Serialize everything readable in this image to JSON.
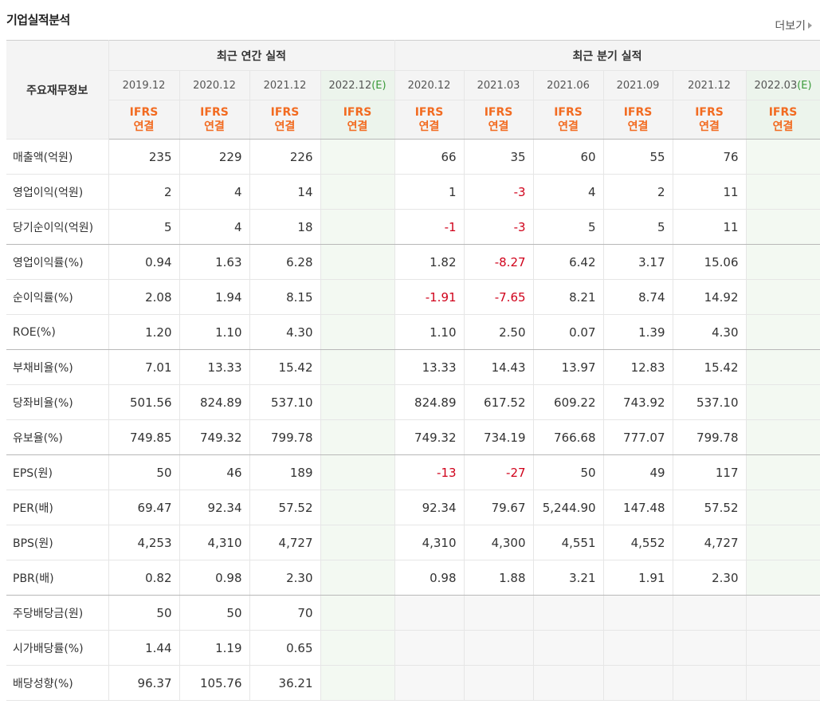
{
  "title": "기업실적분석",
  "more_label": "더보기",
  "header": {
    "label_col": "주요재무정보",
    "annual_group": "최근 연간 실적",
    "quarter_group": "최근 분기 실적",
    "annual_periods": [
      "2019.12",
      "2020.12",
      "2021.12",
      "2022.12"
    ],
    "annual_est": "(E)",
    "quarter_periods": [
      "2020.12",
      "2021.03",
      "2021.06",
      "2021.09",
      "2021.12",
      "2022.03"
    ],
    "quarter_est": "(E)",
    "basis_line1": "IFRS",
    "basis_line2": "연결"
  },
  "rows": [
    {
      "label": "매출액(억원)",
      "annual": [
        "235",
        "229",
        "226",
        ""
      ],
      "quarter": [
        "66",
        "35",
        "60",
        "55",
        "76",
        ""
      ]
    },
    {
      "label": "영업이익(억원)",
      "annual": [
        "2",
        "4",
        "14",
        ""
      ],
      "quarter": [
        "1",
        "-3",
        "4",
        "2",
        "11",
        ""
      ]
    },
    {
      "label": "당기순이익(억원)",
      "annual": [
        "5",
        "4",
        "18",
        ""
      ],
      "quarter": [
        "-1",
        "-3",
        "5",
        "5",
        "11",
        ""
      ]
    },
    {
      "label": "영업이익률(%)",
      "annual": [
        "0.94",
        "1.63",
        "6.28",
        ""
      ],
      "quarter": [
        "1.82",
        "-8.27",
        "6.42",
        "3.17",
        "15.06",
        ""
      ]
    },
    {
      "label": "순이익률(%)",
      "annual": [
        "2.08",
        "1.94",
        "8.15",
        ""
      ],
      "quarter": [
        "-1.91",
        "-7.65",
        "8.21",
        "8.74",
        "14.92",
        ""
      ]
    },
    {
      "label": "ROE(%)",
      "annual": [
        "1.20",
        "1.10",
        "4.30",
        ""
      ],
      "quarter": [
        "1.10",
        "2.50",
        "0.07",
        "1.39",
        "4.30",
        ""
      ]
    },
    {
      "label": "부채비율(%)",
      "annual": [
        "7.01",
        "13.33",
        "15.42",
        ""
      ],
      "quarter": [
        "13.33",
        "14.43",
        "13.97",
        "12.83",
        "15.42",
        ""
      ]
    },
    {
      "label": "당좌비율(%)",
      "annual": [
        "501.56",
        "824.89",
        "537.10",
        ""
      ],
      "quarter": [
        "824.89",
        "617.52",
        "609.22",
        "743.92",
        "537.10",
        ""
      ]
    },
    {
      "label": "유보율(%)",
      "annual": [
        "749.85",
        "749.32",
        "799.78",
        ""
      ],
      "quarter": [
        "749.32",
        "734.19",
        "766.68",
        "777.07",
        "799.78",
        ""
      ]
    },
    {
      "label": "EPS(원)",
      "annual": [
        "50",
        "46",
        "189",
        ""
      ],
      "quarter": [
        "-13",
        "-27",
        "50",
        "49",
        "117",
        ""
      ]
    },
    {
      "label": "PER(배)",
      "annual": [
        "69.47",
        "92.34",
        "57.52",
        ""
      ],
      "quarter": [
        "92.34",
        "79.67",
        "5,244.90",
        "147.48",
        "57.52",
        ""
      ]
    },
    {
      "label": "BPS(원)",
      "annual": [
        "4,253",
        "4,310",
        "4,727",
        ""
      ],
      "quarter": [
        "4,310",
        "4,300",
        "4,551",
        "4,552",
        "4,727",
        ""
      ]
    },
    {
      "label": "PBR(배)",
      "annual": [
        "0.82",
        "0.98",
        "2.30",
        ""
      ],
      "quarter": [
        "0.98",
        "1.88",
        "3.21",
        "1.91",
        "2.30",
        ""
      ]
    },
    {
      "label": "주당배당금(원)",
      "annual": [
        "50",
        "50",
        "70",
        ""
      ],
      "quarter": [
        "",
        "",
        "",
        "",
        "",
        ""
      ]
    },
    {
      "label": "시가배당률(%)",
      "annual": [
        "1.44",
        "1.19",
        "0.65",
        ""
      ],
      "quarter": [
        "",
        "",
        "",
        "",
        "",
        ""
      ]
    },
    {
      "label": "배당성향(%)",
      "annual": [
        "96.37",
        "105.76",
        "36.21",
        ""
      ],
      "quarter": [
        "",
        "",
        "",
        "",
        "",
        ""
      ]
    }
  ],
  "colors": {
    "negative": "#d0021b",
    "basis": "#f26b21",
    "estimate": "#3a9a3a"
  }
}
